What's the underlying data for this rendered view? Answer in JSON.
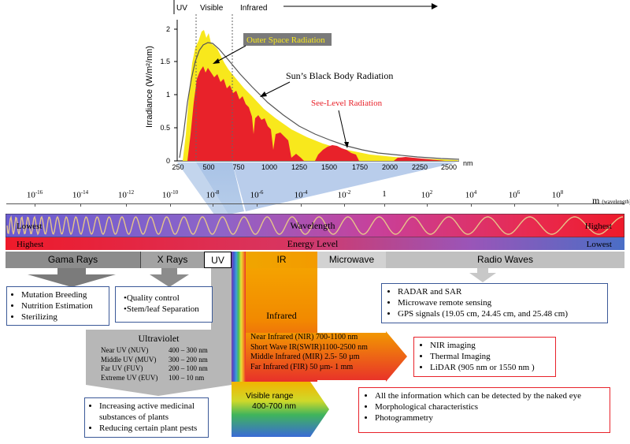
{
  "spectrum_chart": {
    "regions": [
      "UV",
      "Visible",
      "Infrared"
    ],
    "ylabel": "Irradiance (W/m²/nm)",
    "xunit": "nm",
    "yticks": [
      "0",
      "0.5",
      "1",
      "1.5",
      "2"
    ],
    "xticks": [
      "250",
      "500",
      "750",
      "1000",
      "1250",
      "1500",
      "1750",
      "2000",
      "2250",
      "2500"
    ],
    "labels": {
      "outer_space": "Outer Space Radiation",
      "black_body": "Sun’s Black Body Radiation",
      "sea_level": "See-Level Radiation"
    },
    "colors": {
      "outer_space": "#f8e81c",
      "sea_level": "#e8222a",
      "black_body": "#555555"
    }
  },
  "wavelength_axis": {
    "unit": "m",
    "unit_note": "(wavelength)",
    "ticks": [
      {
        "base": "10",
        "exp": "-16"
      },
      {
        "base": "10",
        "exp": "-14"
      },
      {
        "base": "10",
        "exp": "-12"
      },
      {
        "base": "10",
        "exp": "-10"
      },
      {
        "base": "10",
        "exp": "-8"
      },
      {
        "base": "10",
        "exp": "-6"
      },
      {
        "base": "10",
        "exp": "-4"
      },
      {
        "base": "10",
        "exp": "-2"
      },
      {
        "base": "1",
        "exp": ""
      },
      {
        "base": "10",
        "exp": "2"
      },
      {
        "base": "10",
        "exp": "4"
      },
      {
        "base": "10",
        "exp": "6"
      },
      {
        "base": "10",
        "exp": "8"
      }
    ]
  },
  "bars": {
    "wavelength_label": "Wavelength",
    "wavelength_left": "Lowest",
    "wavelength_right": "Highest",
    "energy_label": "Energy Level",
    "energy_left": "Highest",
    "energy_right": "Lowest"
  },
  "bands": {
    "gamma": "Gama Rays",
    "xrays": "X Rays",
    "uv": "UV",
    "ir": "IR",
    "microwave": "Microwave",
    "radio": "Radio Waves"
  },
  "gamma_uses": [
    "Mutation Breeding",
    "Nutrition Estimation",
    "Sterilizing"
  ],
  "xray_uses": [
    "Quality control",
    "Stem/leaf Separation"
  ],
  "radio_uses": [
    "RADAR and  SAR",
    "Microwave remote sensing",
    "GPS signals (19.05 cm, 24.45 cm, and 25.48 cm)"
  ],
  "ultraviolet": {
    "title": "Ultraviolet",
    "rows": [
      {
        "name": "Near UV (NUV)",
        "range": "400 – 300 nm"
      },
      {
        "name": "Middle UV (MUV)",
        "range": "300 – 200 nm"
      },
      {
        "name": "Far UV (FUV)",
        "range": "200 – 100 nm"
      },
      {
        "name": "Extreme UV (EUV)",
        "range": "100 – 10 nm"
      }
    ]
  },
  "uv_uses": [
    "Increasing active medicinal substances of plants",
    "Reducing certain plant pests"
  ],
  "infrared": {
    "title": "Infrared",
    "rows": [
      "Near Infrared (NIR)  700-1100 nm",
      "Short Wave IR(SWIR)1100-2500 nm",
      "Middle Infrared (MIR) 2.5- 50 µm",
      "Far Infrared (FIR) 50 µm- 1 mm"
    ]
  },
  "ir_uses": [
    "NIR imaging",
    "Thermal Imaging",
    "LiDAR (905 nm or 1550 nm )"
  ],
  "visible": {
    "label": "Visible range",
    "range": "400-700 nm"
  },
  "visible_uses": [
    "All the information which can be detected by the naked eye",
    "Morphological characteristics",
    "Photogrammetry"
  ]
}
